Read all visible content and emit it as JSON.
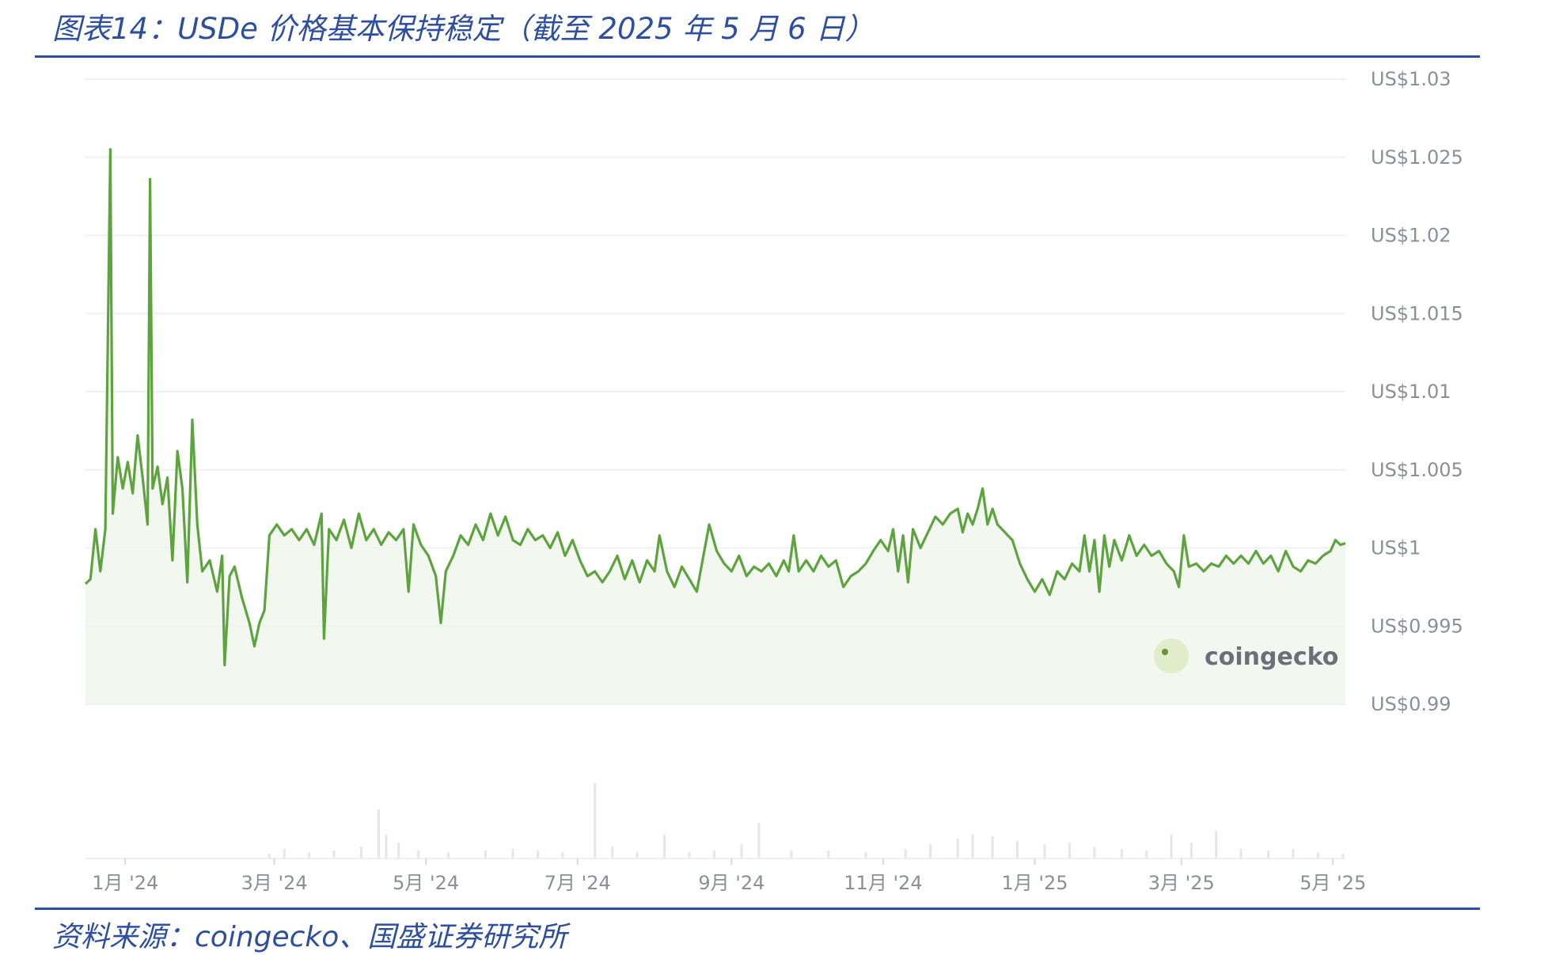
{
  "title": "图表14：USDe 价格基本保持稳定（截至 2025 年 5 月 6 日）",
  "source": "资料来源：coingecko、国盛证券研究所",
  "watermark": "coingecko",
  "colors": {
    "line": "#5da33e",
    "fill": "#eef6ea",
    "grid": "#eef0f3",
    "axis_text": "#8a8f98",
    "header": "#2d4f9e",
    "volume": "#e4e6ea"
  },
  "chart_data": {
    "type": "area",
    "title": "",
    "xlabel": "",
    "ylabel": "",
    "y_tick_labels": [
      "US$1.03",
      "US$1.025",
      "US$1.02",
      "US$1.015",
      "US$1.01",
      "US$1.005",
      "US$1",
      "US$0.995",
      "US$0.99"
    ],
    "y_ticks": [
      1.03,
      1.025,
      1.02,
      1.015,
      1.01,
      1.005,
      1.0,
      0.995,
      0.99
    ],
    "ylim": [
      0.99,
      1.03
    ],
    "x_tick_labels": [
      "1月 '24",
      "3月 '24",
      "5月 '24",
      "7月 '24",
      "9月 '24",
      "11月 '24",
      "1月 '25",
      "3月 '25",
      "5月 '25"
    ],
    "x_tick_dates": [
      "2024-01-01",
      "2024-03-01",
      "2024-05-01",
      "2024-07-01",
      "2024-09-01",
      "2024-11-01",
      "2025-01-01",
      "2025-03-01",
      "2025-05-01"
    ],
    "xlim": [
      "2023-12-16",
      "2025-05-06"
    ],
    "grid": true,
    "series": [
      {
        "values": [
          [
            "2023-12-16",
            0.9977
          ],
          [
            "2023-12-18",
            0.998
          ],
          [
            "2023-12-20",
            1.0012
          ],
          [
            "2023-12-22",
            0.9985
          ],
          [
            "2023-12-24",
            1.0012
          ],
          [
            "2023-12-26",
            1.0255
          ],
          [
            "2023-12-27",
            1.0022
          ],
          [
            "2023-12-29",
            1.0058
          ],
          [
            "2023-12-31",
            1.0038
          ],
          [
            "2024-01-02",
            1.0055
          ],
          [
            "2024-01-04",
            1.0035
          ],
          [
            "2024-01-06",
            1.0072
          ],
          [
            "2024-01-08",
            1.0045
          ],
          [
            "2024-01-10",
            1.0015
          ],
          [
            "2024-01-11",
            1.0236
          ],
          [
            "2024-01-12",
            1.0038
          ],
          [
            "2024-01-14",
            1.0052
          ],
          [
            "2024-01-16",
            1.0028
          ],
          [
            "2024-01-18",
            1.0045
          ],
          [
            "2024-01-20",
            0.9992
          ],
          [
            "2024-01-22",
            1.0062
          ],
          [
            "2024-01-24",
            1.0038
          ],
          [
            "2024-01-26",
            0.9978
          ],
          [
            "2024-01-28",
            1.0082
          ],
          [
            "2024-01-30",
            1.0015
          ],
          [
            "2024-02-01",
            0.9985
          ],
          [
            "2024-02-04",
            0.9992
          ],
          [
            "2024-02-07",
            0.9972
          ],
          [
            "2024-02-09",
            0.9995
          ],
          [
            "2024-02-10",
            0.9925
          ],
          [
            "2024-02-12",
            0.9982
          ],
          [
            "2024-02-14",
            0.9988
          ],
          [
            "2024-02-17",
            0.9968
          ],
          [
            "2024-02-20",
            0.9952
          ],
          [
            "2024-02-22",
            0.9937
          ],
          [
            "2024-02-24",
            0.9952
          ],
          [
            "2024-02-26",
            0.996
          ],
          [
            "2024-02-28",
            1.0008
          ],
          [
            "2024-03-02",
            1.0015
          ],
          [
            "2024-03-05",
            1.0008
          ],
          [
            "2024-03-08",
            1.0012
          ],
          [
            "2024-03-11",
            1.0005
          ],
          [
            "2024-03-14",
            1.0012
          ],
          [
            "2024-03-17",
            1.0002
          ],
          [
            "2024-03-20",
            1.0022
          ],
          [
            "2024-03-21",
            0.9942
          ],
          [
            "2024-03-23",
            1.0012
          ],
          [
            "2024-03-26",
            1.0005
          ],
          [
            "2024-03-29",
            1.0018
          ],
          [
            "2024-04-01",
            1.0
          ],
          [
            "2024-04-04",
            1.0022
          ],
          [
            "2024-04-07",
            1.0005
          ],
          [
            "2024-04-10",
            1.0012
          ],
          [
            "2024-04-13",
            1.0002
          ],
          [
            "2024-04-16",
            1.001
          ],
          [
            "2024-04-19",
            1.0005
          ],
          [
            "2024-04-22",
            1.0012
          ],
          [
            "2024-04-24",
            0.9972
          ],
          [
            "2024-04-26",
            1.0015
          ],
          [
            "2024-04-29",
            1.0002
          ],
          [
            "2024-05-02",
            0.9995
          ],
          [
            "2024-05-05",
            0.9982
          ],
          [
            "2024-05-07",
            0.9952
          ],
          [
            "2024-05-09",
            0.9985
          ],
          [
            "2024-05-12",
            0.9995
          ],
          [
            "2024-05-15",
            1.0008
          ],
          [
            "2024-05-18",
            1.0002
          ],
          [
            "2024-05-21",
            1.0015
          ],
          [
            "2024-05-24",
            1.0005
          ],
          [
            "2024-05-27",
            1.0022
          ],
          [
            "2024-05-30",
            1.0008
          ],
          [
            "2024-06-02",
            1.002
          ],
          [
            "2024-06-05",
            1.0005
          ],
          [
            "2024-06-08",
            1.0002
          ],
          [
            "2024-06-11",
            1.0012
          ],
          [
            "2024-06-14",
            1.0005
          ],
          [
            "2024-06-17",
            1.0008
          ],
          [
            "2024-06-20",
            1.0
          ],
          [
            "2024-06-23",
            1.001
          ],
          [
            "2024-06-26",
            0.9995
          ],
          [
            "2024-06-29",
            1.0005
          ],
          [
            "2024-07-02",
            0.9992
          ],
          [
            "2024-07-05",
            0.9982
          ],
          [
            "2024-07-08",
            0.9985
          ],
          [
            "2024-07-11",
            0.9978
          ],
          [
            "2024-07-14",
            0.9985
          ],
          [
            "2024-07-17",
            0.9995
          ],
          [
            "2024-07-20",
            0.998
          ],
          [
            "2024-07-23",
            0.9992
          ],
          [
            "2024-07-26",
            0.9978
          ],
          [
            "2024-07-29",
            0.9992
          ],
          [
            "2024-08-01",
            0.9985
          ],
          [
            "2024-08-03",
            1.0008
          ],
          [
            "2024-08-06",
            0.9985
          ],
          [
            "2024-08-09",
            0.9975
          ],
          [
            "2024-08-12",
            0.9988
          ],
          [
            "2024-08-15",
            0.998
          ],
          [
            "2024-08-18",
            0.9972
          ],
          [
            "2024-08-21",
            0.9998
          ],
          [
            "2024-08-23",
            1.0015
          ],
          [
            "2024-08-26",
            0.9998
          ],
          [
            "2024-08-29",
            0.999
          ],
          [
            "2024-09-01",
            0.9985
          ],
          [
            "2024-09-04",
            0.9995
          ],
          [
            "2024-09-07",
            0.9982
          ],
          [
            "2024-09-10",
            0.9988
          ],
          [
            "2024-09-13",
            0.9985
          ],
          [
            "2024-09-16",
            0.999
          ],
          [
            "2024-09-19",
            0.9982
          ],
          [
            "2024-09-22",
            0.9992
          ],
          [
            "2024-09-24",
            0.9985
          ],
          [
            "2024-09-26",
            1.0008
          ],
          [
            "2024-09-28",
            0.9985
          ],
          [
            "2024-10-01",
            0.9992
          ],
          [
            "2024-10-04",
            0.9985
          ],
          [
            "2024-10-07",
            0.9995
          ],
          [
            "2024-10-10",
            0.9988
          ],
          [
            "2024-10-13",
            0.9992
          ],
          [
            "2024-10-16",
            0.9975
          ],
          [
            "2024-10-19",
            0.9982
          ],
          [
            "2024-10-22",
            0.9985
          ],
          [
            "2024-10-25",
            0.999
          ],
          [
            "2024-10-28",
            0.9998
          ],
          [
            "2024-10-31",
            1.0005
          ],
          [
            "2024-11-03",
            0.9998
          ],
          [
            "2024-11-05",
            1.0012
          ],
          [
            "2024-11-07",
            0.9985
          ],
          [
            "2024-11-09",
            1.0008
          ],
          [
            "2024-11-11",
            0.9978
          ],
          [
            "2024-11-13",
            1.0012
          ],
          [
            "2024-11-16",
            1.0
          ],
          [
            "2024-11-19",
            1.001
          ],
          [
            "2024-11-22",
            1.002
          ],
          [
            "2024-11-25",
            1.0015
          ],
          [
            "2024-11-28",
            1.0022
          ],
          [
            "2024-12-01",
            1.0025
          ],
          [
            "2024-12-03",
            1.001
          ],
          [
            "2024-12-05",
            1.0022
          ],
          [
            "2024-12-07",
            1.0015
          ],
          [
            "2024-12-09",
            1.0025
          ],
          [
            "2024-12-11",
            1.0038
          ],
          [
            "2024-12-13",
            1.0015
          ],
          [
            "2024-12-15",
            1.0025
          ],
          [
            "2024-12-17",
            1.0015
          ],
          [
            "2024-12-20",
            1.001
          ],
          [
            "2024-12-23",
            1.0005
          ],
          [
            "2024-12-26",
            0.999
          ],
          [
            "2024-12-29",
            0.998
          ],
          [
            "2025-01-01",
            0.9972
          ],
          [
            "2025-01-04",
            0.998
          ],
          [
            "2025-01-07",
            0.997
          ],
          [
            "2025-01-10",
            0.9985
          ],
          [
            "2025-01-13",
            0.998
          ],
          [
            "2025-01-16",
            0.999
          ],
          [
            "2025-01-19",
            0.9985
          ],
          [
            "2025-01-21",
            1.0008
          ],
          [
            "2025-01-23",
            0.9985
          ],
          [
            "2025-01-25",
            1.0005
          ],
          [
            "2025-01-27",
            0.9972
          ],
          [
            "2025-01-29",
            1.0008
          ],
          [
            "2025-01-31",
            0.9988
          ],
          [
            "2025-02-02",
            1.0005
          ],
          [
            "2025-02-05",
            0.9992
          ],
          [
            "2025-02-08",
            1.0008
          ],
          [
            "2025-02-11",
            0.9995
          ],
          [
            "2025-02-14",
            1.0002
          ],
          [
            "2025-02-17",
            0.9995
          ],
          [
            "2025-02-20",
            0.9998
          ],
          [
            "2025-02-23",
            0.999
          ],
          [
            "2025-02-26",
            0.9985
          ],
          [
            "2025-02-28",
            0.9975
          ],
          [
            "2025-03-02",
            1.0008
          ],
          [
            "2025-03-04",
            0.9988
          ],
          [
            "2025-03-07",
            0.999
          ],
          [
            "2025-03-10",
            0.9985
          ],
          [
            "2025-03-13",
            0.999
          ],
          [
            "2025-03-16",
            0.9988
          ],
          [
            "2025-03-19",
            0.9995
          ],
          [
            "2025-03-22",
            0.999
          ],
          [
            "2025-03-25",
            0.9995
          ],
          [
            "2025-03-28",
            0.999
          ],
          [
            "2025-03-31",
            0.9998
          ],
          [
            "2025-04-03",
            0.999
          ],
          [
            "2025-04-06",
            0.9995
          ],
          [
            "2025-04-09",
            0.9985
          ],
          [
            "2025-04-12",
            0.9998
          ],
          [
            "2025-04-15",
            0.9988
          ],
          [
            "2025-04-18",
            0.9985
          ],
          [
            "2025-04-21",
            0.9992
          ],
          [
            "2025-04-24",
            0.999
          ],
          [
            "2025-04-27",
            0.9995
          ],
          [
            "2025-04-30",
            0.9998
          ],
          [
            "2025-05-02",
            1.0005
          ],
          [
            "2025-05-04",
            1.0002
          ],
          [
            "2025-05-06",
            1.0003
          ]
        ]
      }
    ],
    "volume_series": {
      "values": [
        [
          "2024-02-28",
          0.06
        ],
        [
          "2024-03-05",
          0.12
        ],
        [
          "2024-03-15",
          0.08
        ],
        [
          "2024-03-25",
          0.1
        ],
        [
          "2024-04-05",
          0.15
        ],
        [
          "2024-04-12",
          0.62
        ],
        [
          "2024-04-15",
          0.3
        ],
        [
          "2024-04-20",
          0.2
        ],
        [
          "2024-04-28",
          0.1
        ],
        [
          "2024-05-10",
          0.08
        ],
        [
          "2024-05-25",
          0.1
        ],
        [
          "2024-06-05",
          0.12
        ],
        [
          "2024-06-15",
          0.1
        ],
        [
          "2024-06-25",
          0.08
        ],
        [
          "2024-07-08",
          0.95
        ],
        [
          "2024-07-15",
          0.15
        ],
        [
          "2024-07-25",
          0.08
        ],
        [
          "2024-08-05",
          0.3
        ],
        [
          "2024-08-15",
          0.08
        ],
        [
          "2024-08-25",
          0.1
        ],
        [
          "2024-09-05",
          0.18
        ],
        [
          "2024-09-12",
          0.45
        ],
        [
          "2024-09-25",
          0.1
        ],
        [
          "2024-10-10",
          0.1
        ],
        [
          "2024-10-25",
          0.08
        ],
        [
          "2024-11-10",
          0.12
        ],
        [
          "2024-11-20",
          0.18
        ],
        [
          "2024-12-01",
          0.25
        ],
        [
          "2024-12-07",
          0.3
        ],
        [
          "2024-12-15",
          0.28
        ],
        [
          "2024-12-25",
          0.22
        ],
        [
          "2025-01-05",
          0.18
        ],
        [
          "2025-01-15",
          0.2
        ],
        [
          "2025-01-25",
          0.15
        ],
        [
          "2025-02-05",
          0.12
        ],
        [
          "2025-02-15",
          0.1
        ],
        [
          "2025-02-25",
          0.3
        ],
        [
          "2025-03-05",
          0.2
        ],
        [
          "2025-03-15",
          0.35
        ],
        [
          "2025-03-25",
          0.12
        ],
        [
          "2025-04-05",
          0.1
        ],
        [
          "2025-04-15",
          0.12
        ],
        [
          "2025-04-25",
          0.08
        ],
        [
          "2025-05-05",
          0.06
        ]
      ]
    }
  }
}
